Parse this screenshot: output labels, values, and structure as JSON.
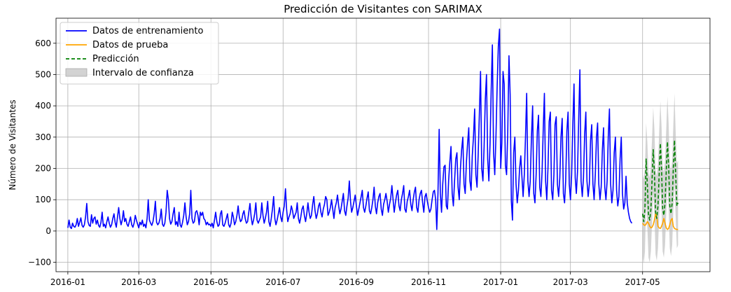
{
  "chart_data": {
    "type": "line",
    "title": "Predicción de Visitantes con SARIMAX",
    "xlabel": "",
    "ylabel": "Número de Visitantes",
    "xlim": [
      "2015-12-22",
      "2017-06-27"
    ],
    "ylim": [
      -130,
      680
    ],
    "yticks": [
      -100,
      0,
      100,
      200,
      300,
      400,
      500,
      600
    ],
    "xticks": [
      "2016-01",
      "2016-03",
      "2016-05",
      "2016-07",
      "2016-09",
      "2016-11",
      "2017-01",
      "2017-03",
      "2017-05"
    ],
    "grid": true,
    "legend": "top-left",
    "series": [
      {
        "name": "Datos de entrenamiento",
        "style": "solid",
        "color": "#0000ff",
        "x_start": "2016-01-01",
        "step_days": 1,
        "values": [
          10,
          35,
          12,
          8,
          25,
          15,
          12,
          20,
          40,
          15,
          28,
          42,
          18,
          12,
          20,
          45,
          88,
          30,
          18,
          15,
          52,
          25,
          40,
          45,
          22,
          35,
          18,
          12,
          28,
          60,
          15,
          22,
          10,
          30,
          45,
          25,
          12,
          20,
          40,
          55,
          28,
          12,
          45,
          75,
          40,
          20,
          35,
          65,
          30,
          40,
          22,
          15,
          30,
          45,
          20,
          12,
          25,
          50,
          35,
          22,
          10,
          28,
          20,
          35,
          15,
          22,
          10,
          40,
          100,
          35,
          25,
          18,
          30,
          55,
          95,
          28,
          20,
          25,
          40,
          70,
          22,
          15,
          25,
          60,
          130,
          100,
          40,
          22,
          30,
          55,
          75,
          20,
          30,
          15,
          60,
          20,
          12,
          28,
          50,
          90,
          45,
          20,
          30,
          55,
          130,
          40,
          25,
          30,
          60,
          65,
          50,
          20,
          60,
          50,
          60,
          40,
          35,
          20,
          28,
          20,
          22,
          15,
          25,
          10,
          35,
          60,
          30,
          15,
          20,
          55,
          65,
          20,
          15,
          25,
          40,
          55,
          20,
          12,
          25,
          60,
          45,
          20,
          30,
          50,
          80,
          45,
          30,
          35,
          55,
          65,
          40,
          25,
          30,
          60,
          88,
          45,
          20,
          35,
          55,
          90,
          35,
          25,
          35,
          45,
          90,
          50,
          25,
          40,
          60,
          95,
          30,
          15,
          40,
          70,
          110,
          40,
          20,
          35,
          55,
          75,
          45,
          30,
          60,
          80,
          135,
          70,
          30,
          45,
          55,
          80,
          65,
          40,
          50,
          60,
          90,
          40,
          25,
          45,
          70,
          80,
          50,
          30,
          55,
          90,
          60,
          40,
          50,
          85,
          110,
          65,
          40,
          55,
          80,
          90,
          60,
          45,
          70,
          85,
          110,
          100,
          50,
          60,
          75,
          100,
          70,
          40,
          75,
          90,
          115,
          80,
          55,
          70,
          95,
          120,
          65,
          50,
          80,
          105,
          160,
          95,
          60,
          75,
          95,
          115,
          80,
          50,
          70,
          90,
          110,
          130,
          75,
          60,
          80,
          105,
          125,
          65,
          55,
          75,
          100,
          140,
          80,
          55,
          90,
          110,
          120,
          70,
          50,
          85,
          100,
          120,
          95,
          60,
          85,
          105,
          145,
          100,
          60,
          90,
          115,
          130,
          80,
          65,
          100,
          120,
          145,
          70,
          60,
          95,
          110,
          130,
          85,
          65,
          100,
          125,
          140,
          75,
          60,
          100,
          120,
          130,
          90,
          60,
          110,
          120,
          95,
          75,
          60,
          70,
          100,
          125,
          130,
          100,
          5,
          120,
          325,
          120,
          60,
          150,
          205,
          210,
          80,
          70,
          160,
          220,
          270,
          120,
          80,
          160,
          230,
          250,
          140,
          100,
          200,
          260,
          300,
          150,
          120,
          220,
          280,
          330,
          160,
          130,
          240,
          300,
          390,
          180,
          140,
          250,
          380,
          510,
          200,
          160,
          270,
          420,
          500,
          230,
          160,
          280,
          450,
          595,
          250,
          180,
          300,
          460,
          590,
          645,
          200,
          280,
          510,
          470,
          210,
          180,
          320,
          560,
          435,
          95,
          35,
          250,
          300,
          150,
          90,
          130,
          200,
          240,
          170,
          110,
          180,
          300,
          440,
          160,
          110,
          160,
          300,
          400,
          120,
          90,
          180,
          320,
          370,
          140,
          110,
          190,
          330,
          440,
          160,
          100,
          200,
          350,
          380,
          130,
          100,
          180,
          340,
          365,
          150,
          110,
          170,
          300,
          360,
          120,
          90,
          160,
          320,
          380,
          150,
          100,
          180,
          340,
          470,
          170,
          120,
          190,
          360,
          515,
          160,
          110,
          170,
          310,
          380,
          160,
          110,
          150,
          290,
          340,
          150,
          100,
          180,
          300,
          345,
          150,
          100,
          140,
          260,
          330,
          140,
          100,
          160,
          300,
          390,
          150,
          90,
          130,
          250,
          300,
          130,
          80,
          110,
          230,
          300,
          120,
          70,
          90,
          175,
          90,
          60,
          40,
          30,
          25
        ]
      },
      {
        "name": "Datos de prueba",
        "style": "solid",
        "color": "#ffa500",
        "x_start": "2017-05-01",
        "step_days": 1,
        "values": [
          25,
          20,
          18,
          22,
          30,
          25,
          15,
          10,
          12,
          20,
          35,
          55,
          45,
          15,
          10,
          8,
          15,
          25,
          40,
          25,
          10,
          5,
          8,
          20,
          35,
          40,
          15,
          8,
          6,
          5,
          5
        ]
      },
      {
        "name": "Predicción",
        "style": "dashed",
        "color": "#008000",
        "x_start": "2017-05-01",
        "step_days": 1,
        "values": [
          55,
          30,
          70,
          230,
          150,
          50,
          35,
          70,
          160,
          260,
          190,
          60,
          40,
          80,
          180,
          280,
          200,
          70,
          50,
          90,
          190,
          285,
          210,
          80,
          55,
          90,
          200,
          290,
          180,
          80,
          90
        ]
      },
      {
        "name": "Intervalo de confianza",
        "type": "band",
        "color": "#c0c0c0",
        "x_start": "2017-05-01",
        "step_days": 1,
        "lower": [
          -75,
          -105,
          -65,
          95,
          15,
          -85,
          -100,
          -65,
          25,
          125,
          55,
          -75,
          -95,
          -55,
          45,
          145,
          65,
          -65,
          -85,
          -45,
          55,
          150,
          75,
          -55,
          -80,
          -45,
          65,
          155,
          45,
          -55,
          -45
        ],
        "upper": [
          185,
          165,
          205,
          345,
          285,
          185,
          170,
          205,
          295,
          395,
          325,
          195,
          175,
          215,
          315,
          415,
          335,
          205,
          185,
          225,
          325,
          430,
          345,
          215,
          190,
          225,
          335,
          440,
          315,
          215,
          225
        ]
      }
    ]
  }
}
